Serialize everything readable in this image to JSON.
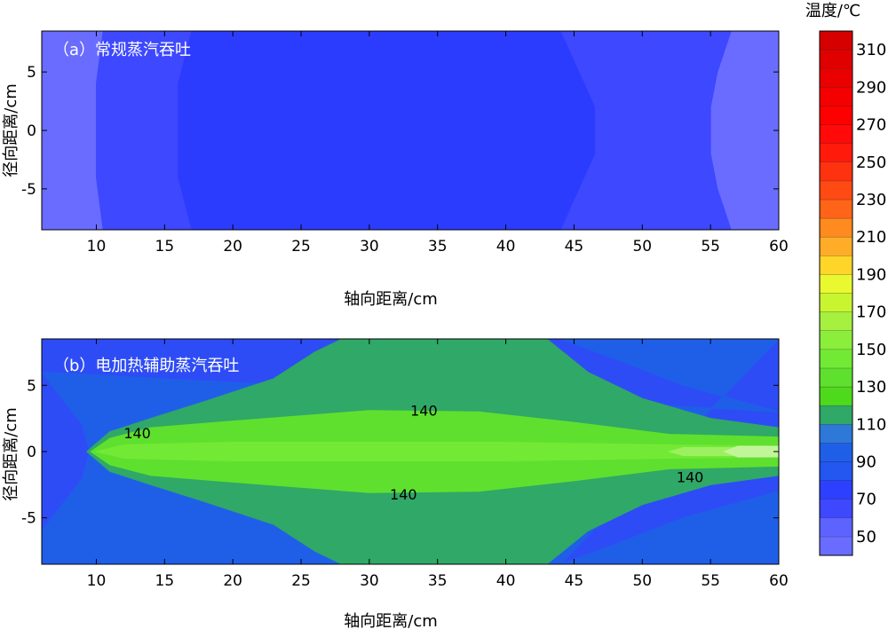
{
  "chart_data": [
    {
      "type": "heatmap",
      "label": "（a）常规蒸汽吞吐",
      "xlabel": "轴向距离/cm",
      "ylabel": "径向距离/cm",
      "xlim": [
        6,
        60
      ],
      "ylim": [
        -8.5,
        8.5
      ],
      "xticks": [
        "10",
        "15",
        "20",
        "25",
        "30",
        "35",
        "40",
        "45",
        "50",
        "55",
        "60"
      ],
      "xtick_values": [
        10,
        15,
        20,
        25,
        30,
        35,
        40,
        45,
        50,
        55,
        60
      ],
      "yticks": [
        "5",
        "0",
        "-5"
      ],
      "ytick_values": [
        5,
        0,
        -5
      ],
      "regions": [
        {
          "level": 50,
          "color": "#6a6cff",
          "description": "background"
        },
        {
          "level": 70,
          "color": "#3d48ff",
          "polygon": [
            [
              10.5,
              8.5
            ],
            [
              10,
              4
            ],
            [
              10,
              0
            ],
            [
              10,
              -4
            ],
            [
              10.5,
              -8.5
            ],
            [
              56.5,
              -8.5
            ],
            [
              55.5,
              -5
            ],
            [
              55,
              -2
            ],
            [
              55,
              2
            ],
            [
              55.5,
              5
            ],
            [
              56.5,
              8.5
            ]
          ]
        },
        {
          "level": 90,
          "color": "#2c3cff",
          "polygon": [
            [
              17,
              8.5
            ],
            [
              16,
              4
            ],
            [
              16,
              -4
            ],
            [
              17,
              -8.5
            ],
            [
              44,
              -8.5
            ],
            [
              46.5,
              -2
            ],
            [
              46.5,
              2
            ],
            [
              44,
              8.5
            ]
          ]
        }
      ],
      "contour_labels": []
    },
    {
      "type": "heatmap",
      "label": "（b）电加热辅助蒸汽吞吐",
      "xlabel": "轴向距离/cm",
      "ylabel": "径向距离/cm",
      "xlim": [
        6,
        60
      ],
      "ylim": [
        -8.5,
        8.5
      ],
      "xticks": [
        "10",
        "15",
        "20",
        "25",
        "30",
        "35",
        "40",
        "45",
        "50",
        "55",
        "60"
      ],
      "xtick_values": [
        10,
        15,
        20,
        25,
        30,
        35,
        40,
        45,
        50,
        55,
        60
      ],
      "yticks": [
        "5",
        "0",
        "-5"
      ],
      "ytick_values": [
        5,
        0,
        -5
      ],
      "regions": [
        {
          "level": 90,
          "color": "#2e4cf5",
          "description": "background"
        },
        {
          "level": 110,
          "color": "#1f5fe8",
          "polygon": [
            [
              6,
              6
            ],
            [
              9,
              2
            ],
            [
              9.5,
              0
            ],
            [
              9,
              -2
            ],
            [
              6,
              -6
            ],
            [
              6,
              -8.5
            ],
            [
              60,
              -8.5
            ],
            [
              60,
              -3
            ],
            [
              53,
              -5
            ],
            [
              48,
              -7
            ],
            [
              44,
              -8.5
            ],
            [
              60,
              8.5
            ],
            [
              44,
              8.5
            ],
            [
              48,
              7
            ],
            [
              53,
              5
            ],
            [
              60,
              3
            ]
          ]
        },
        {
          "level": 130,
          "color": "#30a867",
          "polygon": [
            [
              9.3,
              0
            ],
            [
              11,
              1.5
            ],
            [
              14,
              2.5
            ],
            [
              18,
              3.8
            ],
            [
              23,
              5.5
            ],
            [
              26,
              7.5
            ],
            [
              28,
              8.5
            ],
            [
              43,
              8.5
            ],
            [
              46,
              6
            ],
            [
              50,
              4
            ],
            [
              55,
              2.5
            ],
            [
              60,
              1.8
            ],
            [
              60,
              -1.8
            ],
            [
              55,
              -2.5
            ],
            [
              50,
              -4
            ],
            [
              46,
              -6
            ],
            [
              43,
              -8.5
            ],
            [
              28,
              -8.5
            ],
            [
              26,
              -7.5
            ],
            [
              23,
              -5.5
            ],
            [
              18,
              -3.8
            ],
            [
              14,
              -2.5
            ],
            [
              11,
              -1.5
            ]
          ]
        },
        {
          "level": 150,
          "color": "#5fe02f",
          "polygon": [
            [
              9.6,
              0
            ],
            [
              11,
              1
            ],
            [
              14,
              1.8
            ],
            [
              20,
              2.3
            ],
            [
              30,
              3.1
            ],
            [
              38,
              3
            ],
            [
              45,
              2.2
            ],
            [
              52,
              1.3
            ],
            [
              60,
              1.1
            ],
            [
              60,
              -1.1
            ],
            [
              52,
              -1.3
            ],
            [
              45,
              -2.2
            ],
            [
              38,
              -3
            ],
            [
              30,
              -3.1
            ],
            [
              20,
              -2.3
            ],
            [
              14,
              -1.8
            ],
            [
              11,
              -1
            ]
          ]
        },
        {
          "level": 170,
          "color": "#72ea35",
          "polygon": [
            [
              10,
              0
            ],
            [
              12,
              0.5
            ],
            [
              20,
              0.7
            ],
            [
              40,
              0.7
            ],
            [
              52,
              0.5
            ],
            [
              60,
              0.4
            ],
            [
              60,
              -0.4
            ],
            [
              52,
              -0.5
            ],
            [
              40,
              -0.7
            ],
            [
              20,
              -0.7
            ],
            [
              12,
              -0.5
            ]
          ]
        },
        {
          "level": 190,
          "color": "#9cf060",
          "polygon": [
            [
              52,
              0
            ],
            [
              53,
              0.3
            ],
            [
              58,
              0.3
            ],
            [
              60,
              0.2
            ],
            [
              60,
              -0.2
            ],
            [
              58,
              -0.3
            ],
            [
              53,
              -0.3
            ]
          ]
        },
        {
          "level": 210,
          "color": "#c2f59a",
          "polygon": [
            [
              56,
              0
            ],
            [
              57,
              0.4
            ],
            [
              60,
              0.4
            ],
            [
              60,
              -0.4
            ],
            [
              57,
              -0.4
            ]
          ]
        }
      ],
      "contour_labels": [
        {
          "text": "140",
          "x": 13,
          "y": 1.4
        },
        {
          "text": "140",
          "x": 34,
          "y": 3.1
        },
        {
          "text": "140",
          "x": 32.5,
          "y": -3.2
        },
        {
          "text": "140",
          "x": 53.5,
          "y": -1.9
        }
      ]
    }
  ],
  "colorbar": {
    "title": "温度/℃",
    "min": 40,
    "max": 320,
    "step": 10,
    "labels": [
      "310",
      "290",
      "270",
      "250",
      "230",
      "210",
      "190",
      "170",
      "150",
      "130",
      "110",
      "90",
      "70",
      "50"
    ],
    "label_values": [
      310,
      290,
      270,
      250,
      230,
      210,
      190,
      170,
      150,
      130,
      110,
      90,
      70,
      50
    ],
    "colors": [
      "#6a6cff",
      "#5d63ff",
      "#3d48ff",
      "#2e40ff",
      "#2456f0",
      "#1f5fe8",
      "#2e78d8",
      "#30a867",
      "#4fd91c",
      "#5fe02f",
      "#72ea35",
      "#8aee3a",
      "#a6f040",
      "#c8f530",
      "#eaf830",
      "#ffd52a",
      "#ffad28",
      "#ff8a20",
      "#ff6418",
      "#ff4a14",
      "#ff3210",
      "#ff1a0c",
      "#ff0a08",
      "#ff0000",
      "#f40000",
      "#ea0000",
      "#e00000",
      "#d60000"
    ]
  }
}
